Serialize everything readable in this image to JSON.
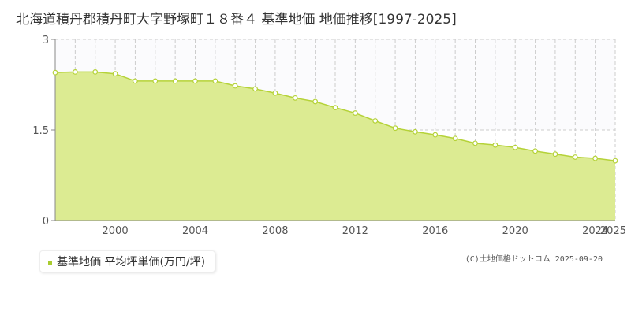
{
  "title": "北海道積丹郡積丹町大字野塚町１８番４ 基準地価 地価推移[1997-2025]",
  "legend": {
    "label": "基準地価 平均坪単価(万円/坪)"
  },
  "credit": "(C)土地価格ドットコム 2025-09-20",
  "colors": {
    "fill": "#dceb92",
    "line": "#b5d238",
    "marker_fill": "#ffffff",
    "marker_stroke": "#b5d238",
    "grid": "#cccccc",
    "axis": "#888888",
    "legend_swatch": "#a9cc2f"
  },
  "chart_data": {
    "type": "area",
    "title": "北海道積丹郡積丹町大字野塚町１８番４ 基準地価 地価推移[1997-2025]",
    "xlabel": "",
    "ylabel": "",
    "x": [
      1997,
      1998,
      1999,
      2000,
      2001,
      2002,
      2003,
      2004,
      2005,
      2006,
      2007,
      2008,
      2009,
      2010,
      2011,
      2012,
      2013,
      2014,
      2015,
      2016,
      2017,
      2018,
      2019,
      2020,
      2021,
      2022,
      2023,
      2024,
      2025
    ],
    "series": [
      {
        "name": "基準地価 平均坪単価(万円/坪)",
        "values": [
          2.45,
          2.46,
          2.46,
          2.43,
          2.31,
          2.31,
          2.31,
          2.31,
          2.31,
          2.23,
          2.18,
          2.11,
          2.03,
          1.97,
          1.87,
          1.78,
          1.65,
          1.53,
          1.47,
          1.42,
          1.36,
          1.28,
          1.25,
          1.21,
          1.15,
          1.1,
          1.05,
          1.03,
          0.99
        ]
      }
    ],
    "xlim": [
      1997,
      2025
    ],
    "ylim": [
      0,
      3
    ],
    "y_ticks": [
      "0",
      "1.5",
      "3"
    ],
    "x_ticks": [
      "2000",
      "2004",
      "2008",
      "2012",
      "2016",
      "2020",
      "2024",
      "2025"
    ],
    "grid": true,
    "legend_position": "bottom-left"
  }
}
